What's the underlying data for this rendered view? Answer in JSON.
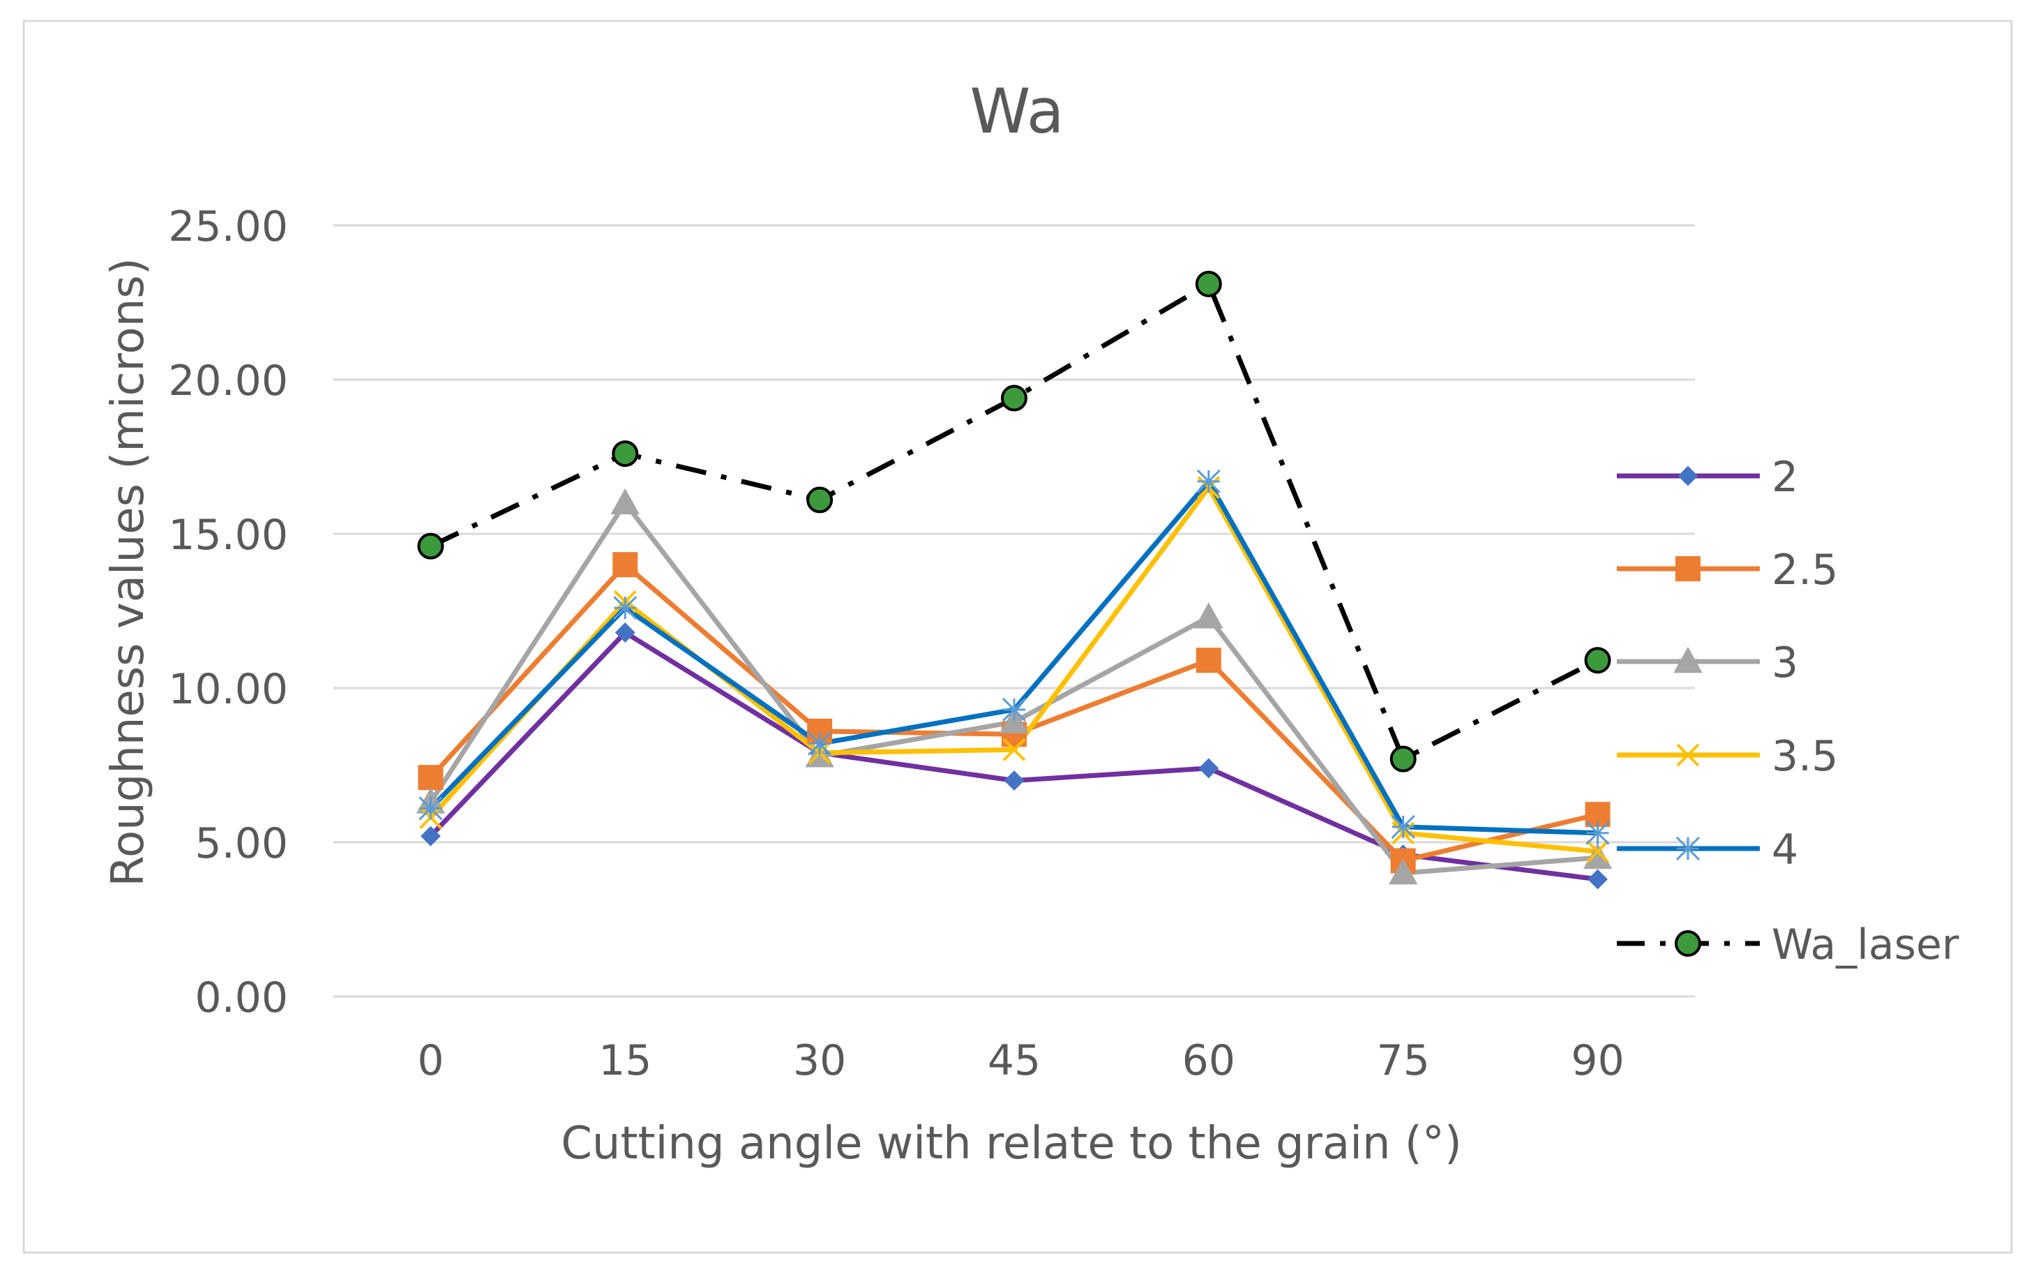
{
  "chart_data": {
    "type": "line",
    "title": "Wa",
    "xlabel": "Cutting angle with relate to the grain (°)",
    "ylabel": "Roughness values (microns)",
    "categories": [
      "0",
      "15",
      "30",
      "45",
      "60",
      "75",
      "90"
    ],
    "y_tick_labels": [
      "0.00",
      "5.00",
      "10.00",
      "15.00",
      "20.00",
      "25.00"
    ],
    "ylim": [
      0,
      25
    ],
    "grid": true,
    "legend_position": "right",
    "series": [
      {
        "name": "2",
        "values": [
          5.2,
          11.8,
          7.9,
          7.0,
          7.4,
          4.6,
          3.8
        ],
        "color": "#7030A0",
        "marker": "diamond",
        "dash": "solid"
      },
      {
        "name": "2.5",
        "values": [
          7.1,
          14.0,
          8.6,
          8.5,
          10.9,
          4.4,
          5.9
        ],
        "color": "#ED7D31",
        "marker": "square",
        "dash": "solid"
      },
      {
        "name": "3",
        "values": [
          6.3,
          16.0,
          7.8,
          8.9,
          12.3,
          4.0,
          4.5
        ],
        "color": "#A5A5A5",
        "marker": "triangle",
        "dash": "solid"
      },
      {
        "name": "3.5",
        "values": [
          5.8,
          12.8,
          7.9,
          8.0,
          16.5,
          5.3,
          4.7
        ],
        "color": "#FFC000",
        "marker": "x",
        "dash": "solid"
      },
      {
        "name": "4",
        "values": [
          6.1,
          12.6,
          8.2,
          9.3,
          16.7,
          5.5,
          5.3
        ],
        "color": "#0070C0",
        "marker": "asterisk",
        "dash": "solid"
      },
      {
        "name": "Wa_laser",
        "values": [
          14.6,
          17.6,
          16.1,
          19.4,
          23.1,
          7.7,
          10.9
        ],
        "color": "#000000",
        "marker": "circle",
        "marker_fill": "#3C9A3C",
        "dash": "dashdot"
      }
    ]
  }
}
